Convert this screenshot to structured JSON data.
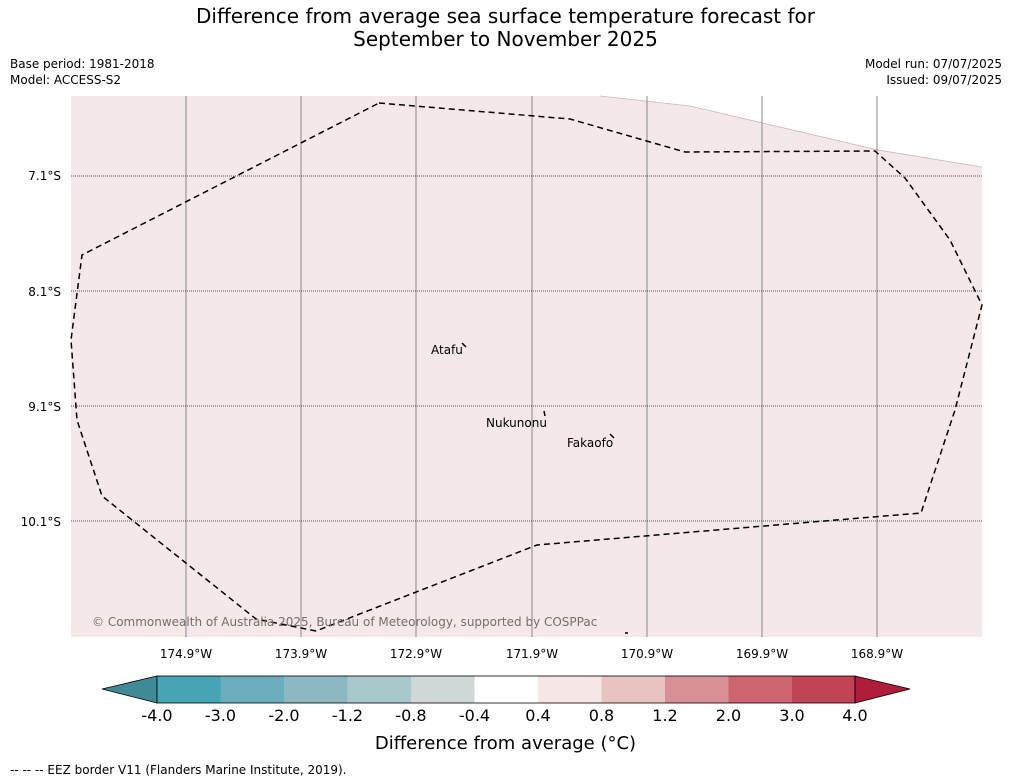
{
  "title_line1": "Difference from average sea surface temperature forecast for",
  "title_line2": "September to November 2025",
  "meta_left": {
    "base_period": "Base period: 1981-2018",
    "model": "Model: ACCESS-S2"
  },
  "meta_right": {
    "model_run": "Model run: 07/07/2025",
    "issued": "Issued: 09/07/2025"
  },
  "map": {
    "fill_color": "#f4e9e8",
    "latitude_labels": [
      "7.1°S",
      "8.1°S",
      "9.1°S",
      "10.1°S"
    ],
    "longitude_labels": [
      "174.9°W",
      "173.9°W",
      "172.9°W",
      "171.9°W",
      "170.9°W",
      "169.9°W",
      "168.9°W"
    ],
    "places": [
      "Atafu",
      "Nukunonu",
      "Fakaofo"
    ],
    "copyright": "© Commonwealth of Australia 2025, Bureau of Meteorology, supported by COSPPac"
  },
  "colorbar": {
    "ticks": [
      "-4.0",
      "-3.0",
      "-2.0",
      "-1.2",
      "-0.8",
      "-0.4",
      "0.4",
      "0.8",
      "1.2",
      "2.0",
      "3.0",
      "4.0"
    ],
    "colors": [
      "#3e8a97",
      "#46a4b5",
      "#6aaebd",
      "#8db8c2",
      "#a9c8cc",
      "#d1d8d8",
      "#ffffff",
      "#f6e6e5",
      "#e9c3c1",
      "#d98f96",
      "#cd6571",
      "#bf4454",
      "#b01d3c"
    ],
    "title": "Difference from average (°C)"
  },
  "footer": "--  --  -- EEZ border V11 (Flanders Marine Institute, 2019)."
}
